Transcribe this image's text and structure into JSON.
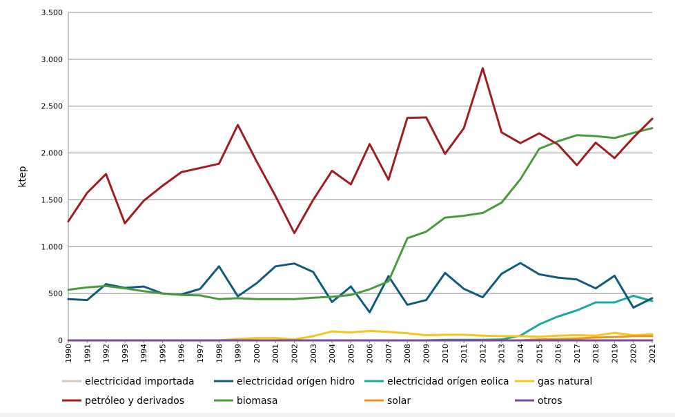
{
  "chart_data": {
    "type": "line",
    "ylabel": "ktep",
    "ylim": [
      0,
      3500
    ],
    "yticks": [
      0,
      500,
      1000,
      1500,
      2000,
      2500,
      3000,
      3500
    ],
    "ytick_labels": [
      "0",
      "500",
      "1.000",
      "1.500",
      "2.000",
      "2.500",
      "3.000",
      "3.500"
    ],
    "grid": "horizontal",
    "legend_position": "bottom",
    "categories": [
      "1990",
      "1991",
      "1992",
      "1993",
      "1994",
      "1995",
      "1996",
      "1997",
      "1998",
      "1999",
      "2000",
      "2001",
      "2002",
      "2003",
      "2004",
      "2005",
      "2006",
      "2007",
      "2008",
      "2009",
      "2010",
      "2011",
      "2012",
      "2013",
      "2014",
      "2015",
      "2016",
      "2017",
      "2018",
      "2019",
      "2020",
      "2021"
    ],
    "series": [
      {
        "name": "electricidad importada",
        "color": "#d9c8c2",
        "values": [
          0,
          0,
          0,
          0,
          0,
          0,
          0,
          0,
          0,
          0,
          0,
          0,
          0,
          0,
          0,
          0,
          0,
          0,
          0,
          0,
          0,
          0,
          0,
          0,
          0,
          0,
          0,
          0,
          0,
          0,
          0,
          0
        ]
      },
      {
        "name": "electricidad orígen hidro",
        "color": "#105a7d",
        "values": [
          440,
          430,
          600,
          560,
          575,
          500,
          490,
          550,
          790,
          470,
          610,
          790,
          820,
          730,
          410,
          575,
          300,
          685,
          380,
          430,
          720,
          550,
          460,
          710,
          825,
          705,
          670,
          650,
          555,
          690,
          350,
          450
        ]
      },
      {
        "name": "electricidad orígen eolica",
        "color": "#1ba99a",
        "values": [
          0,
          0,
          0,
          0,
          0,
          0,
          0,
          0,
          0,
          0,
          0,
          0,
          0,
          0,
          0,
          0,
          0,
          0,
          0,
          0,
          5,
          5,
          5,
          10,
          50,
          170,
          255,
          320,
          405,
          405,
          475,
          420
        ]
      },
      {
        "name": "gas natural",
        "color": "#f5c61c",
        "values": [
          0,
          0,
          0,
          0,
          0,
          0,
          0,
          0,
          0,
          15,
          25,
          25,
          10,
          45,
          95,
          85,
          100,
          90,
          75,
          55,
          60,
          60,
          50,
          45,
          45,
          40,
          50,
          55,
          50,
          80,
          55,
          65
        ]
      },
      {
        "name": "petróleo y derivados",
        "color": "#a01c1f",
        "values": [
          1270,
          1575,
          1775,
          1250,
          1490,
          1650,
          1795,
          1840,
          1885,
          2300,
          1910,
          1540,
          1145,
          1500,
          1810,
          1665,
          2095,
          1715,
          2375,
          2380,
          1990,
          2265,
          2905,
          2220,
          2105,
          2210,
          2090,
          1870,
          2110,
          1945,
          2165,
          2365
        ]
      },
      {
        "name": "biomasa",
        "color": "#4a9a3d",
        "values": [
          540,
          565,
          580,
          555,
          525,
          500,
          485,
          480,
          440,
          450,
          440,
          440,
          440,
          455,
          465,
          485,
          545,
          630,
          1090,
          1160,
          1310,
          1330,
          1360,
          1470,
          1720,
          2045,
          2125,
          2190,
          2180,
          2160,
          2215,
          2265
        ]
      },
      {
        "name": "solar",
        "color": "#f0941e",
        "values": [
          0,
          0,
          0,
          0,
          0,
          0,
          0,
          0,
          0,
          0,
          0,
          0,
          0,
          0,
          0,
          0,
          0,
          0,
          0,
          0,
          0,
          0,
          0,
          0,
          0,
          10,
          15,
          20,
          30,
          35,
          45,
          45
        ]
      },
      {
        "name": "otros",
        "color": "#7a4a9e",
        "values": [
          0,
          0,
          0,
          0,
          0,
          0,
          0,
          0,
          0,
          0,
          0,
          0,
          0,
          0,
          0,
          0,
          0,
          0,
          0,
          0,
          0,
          0,
          0,
          0,
          0,
          0,
          0,
          0,
          0,
          0,
          0,
          0
        ]
      }
    ]
  }
}
